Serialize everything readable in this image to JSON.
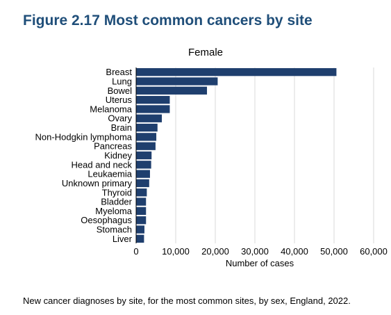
{
  "figure_title": "Figure 2.17 Most common cancers by site",
  "caption": "New cancer diagnoses by site, for the most common sites, by sex, England, 2022.",
  "colors": {
    "bar": "#1f3f6e",
    "title": "#1f4e79",
    "grid": "#d9d9d9"
  },
  "chart_data": {
    "type": "bar",
    "orientation": "horizontal",
    "title": "Female",
    "xlabel": "Number of cases",
    "ylabel": "",
    "xlim": [
      0,
      60000
    ],
    "xticks": [
      0,
      10000,
      20000,
      30000,
      40000,
      50000,
      60000
    ],
    "xtick_labels": [
      "0",
      "10,000",
      "20,000",
      "30,000",
      "40,000",
      "50,000",
      "60,000"
    ],
    "grid": true,
    "categories": [
      "Breast",
      "Lung",
      "Bowel",
      "Uterus",
      "Melanoma",
      "Ovary",
      "Brain",
      "Non-Hodgkin lymphoma",
      "Pancreas",
      "Kidney",
      "Head and neck",
      "Leukaemia",
      "Unknown primary",
      "Thyroid",
      "Bladder",
      "Myeloma",
      "Oesophagus",
      "Stomach",
      "Liver"
    ],
    "values": [
      50600,
      20600,
      17900,
      8500,
      8500,
      6500,
      5400,
      5100,
      4900,
      3900,
      3800,
      3500,
      3300,
      2700,
      2500,
      2500,
      2500,
      2100,
      2000
    ]
  }
}
